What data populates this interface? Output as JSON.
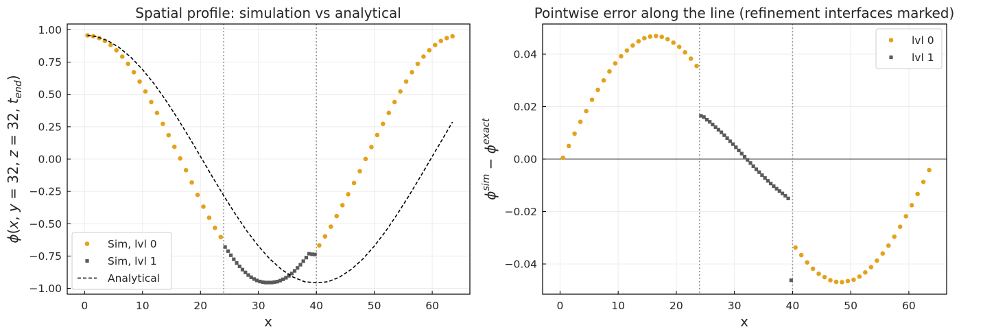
{
  "chart_data": [
    {
      "type": "scatter",
      "title": "Spatial profile: simulation vs analytical",
      "xlabel": "x",
      "ylabel": "φ(x, y = 32, z = 32, t_end)",
      "xlim": [
        -3,
        66.5
      ],
      "ylim": [
        -1.045,
        1.045
      ],
      "xticks": [
        "0",
        "10",
        "20",
        "30",
        "40",
        "50",
        "60"
      ],
      "yticks": [
        "1.00",
        "0.75",
        "0.50",
        "0.25",
        "0.00",
        "−0.25",
        "−0.50",
        "−0.75",
        "−1.00"
      ],
      "interfaces_x": [
        24,
        40
      ],
      "grid": true,
      "legend_position": "lower-left",
      "series": [
        {
          "name": "Sim, lvl 0",
          "marker": "circle",
          "color": "#e3a21b",
          "x": [
            0.5,
            1.5,
            2.5,
            3.5,
            4.5,
            5.5,
            6.5,
            7.5,
            8.5,
            9.5,
            10.5,
            11.5,
            12.5,
            13.5,
            14.5,
            15.5,
            16.5,
            17.5,
            18.5,
            19.5,
            20.5,
            21.5,
            22.5,
            23.5,
            40.5,
            41.5,
            42.5,
            43.5,
            44.5,
            45.5,
            46.5,
            47.5,
            48.5,
            49.5,
            50.5,
            51.5,
            52.5,
            53.5,
            54.5,
            55.5,
            56.5,
            57.5,
            58.5,
            59.5,
            60.5,
            61.5,
            62.5,
            63.5
          ],
          "y": [
            0.957,
            0.95,
            0.936,
            0.914,
            0.882,
            0.842,
            0.793,
            0.737,
            0.672,
            0.6,
            0.523,
            0.441,
            0.357,
            0.272,
            0.185,
            0.095,
            0.005,
            -0.086,
            -0.181,
            -0.277,
            -0.368,
            -0.454,
            -0.532,
            -0.603,
            -0.668,
            -0.598,
            -0.523,
            -0.441,
            -0.357,
            -0.272,
            -0.185,
            -0.094,
            0.001,
            0.093,
            0.186,
            0.272,
            0.357,
            0.441,
            0.523,
            0.6,
            0.672,
            0.737,
            0.793,
            0.842,
            0.882,
            0.914,
            0.936,
            0.95
          ]
        },
        {
          "name": "Sim, lvl 1",
          "marker": "square",
          "color": "#5a5a5a",
          "x": [
            24.25,
            24.75,
            25.25,
            25.75,
            26.25,
            26.75,
            27.25,
            27.75,
            28.25,
            28.75,
            29.25,
            29.75,
            30.25,
            30.75,
            31.25,
            31.75,
            32.25,
            32.75,
            33.25,
            33.75,
            34.25,
            34.75,
            35.25,
            35.75,
            36.25,
            36.75,
            37.25,
            37.75,
            38.25,
            38.75,
            39.25,
            39.75
          ],
          "y": [
            -0.68,
            -0.712,
            -0.744,
            -0.775,
            -0.804,
            -0.83,
            -0.855,
            -0.877,
            -0.897,
            -0.914,
            -0.928,
            -0.939,
            -0.947,
            -0.952,
            -0.955,
            -0.955,
            -0.955,
            -0.952,
            -0.948,
            -0.94,
            -0.93,
            -0.918,
            -0.903,
            -0.885,
            -0.865,
            -0.842,
            -0.817,
            -0.79,
            -0.762,
            -0.732,
            -0.736,
            -0.738
          ]
        },
        {
          "name": "Analytical",
          "style": "dashed",
          "color": "#000000",
          "x": [
            0.5,
            2,
            4,
            6,
            8,
            10,
            12,
            14,
            16,
            18,
            20,
            22,
            24,
            26,
            28,
            30,
            32,
            34,
            36,
            38,
            40,
            42,
            44,
            46,
            48,
            50,
            52,
            54,
            56,
            58,
            60,
            62,
            63.5
          ],
          "y": [
            0.957,
            0.948,
            0.916,
            0.862,
            0.787,
            0.693,
            0.582,
            0.456,
            0.318,
            0.172,
            0.02,
            -0.133,
            -0.282,
            -0.424,
            -0.556,
            -0.673,
            -0.774,
            -0.854,
            -0.913,
            -0.949,
            -0.957,
            -0.949,
            -0.913,
            -0.854,
            -0.774,
            -0.673,
            -0.556,
            -0.424,
            -0.282,
            -0.133,
            0.02,
            0.172,
            0.287
          ]
        }
      ]
    },
    {
      "type": "scatter",
      "title": "Pointwise error along the line (refinement interfaces marked)",
      "xlabel": "x",
      "ylabel": "φ^sim − φ^exact",
      "xlim": [
        -3,
        66.5
      ],
      "ylim": [
        -0.0515,
        0.0515
      ],
      "xticks": [
        "0",
        "10",
        "20",
        "30",
        "40",
        "50",
        "60"
      ],
      "yticks": [
        "0.04",
        "0.02",
        "0.00",
        "−0.02",
        "−0.04"
      ],
      "interfaces_x": [
        24,
        40
      ],
      "zero_line": true,
      "grid": true,
      "legend_position": "upper-right",
      "series": [
        {
          "name": "lvl 0",
          "marker": "circle",
          "color": "#e3a21b",
          "x": [
            0.5,
            1.5,
            2.5,
            3.5,
            4.5,
            5.5,
            6.5,
            7.5,
            8.5,
            9.5,
            10.5,
            11.5,
            12.5,
            13.5,
            14.5,
            15.5,
            16.5,
            17.5,
            18.5,
            19.5,
            20.5,
            21.5,
            22.5,
            23.5,
            40.5,
            41.5,
            42.5,
            43.5,
            44.5,
            45.5,
            46.5,
            47.5,
            48.5,
            49.5,
            50.5,
            51.5,
            52.5,
            53.5,
            54.5,
            55.5,
            56.5,
            57.5,
            58.5,
            59.5,
            60.5,
            61.5,
            62.5,
            63.5
          ],
          "y": [
            0.0005,
            0.005,
            0.0097,
            0.0142,
            0.0183,
            0.0226,
            0.0264,
            0.03,
            0.0334,
            0.0365,
            0.0392,
            0.0414,
            0.0433,
            0.0449,
            0.0461,
            0.0467,
            0.0469,
            0.0466,
            0.0457,
            0.0444,
            0.0428,
            0.0407,
            0.0383,
            0.0355,
            -0.0337,
            -0.0366,
            -0.0394,
            -0.0418,
            -0.0437,
            -0.045,
            -0.0462,
            -0.0468,
            -0.0469,
            -0.0465,
            -0.046,
            -0.0448,
            -0.0432,
            -0.0412,
            -0.0387,
            -0.036,
            -0.033,
            -0.0296,
            -0.0258,
            -0.0218,
            -0.0176,
            -0.0133,
            -0.0087,
            -0.0042
          ]
        },
        {
          "name": "lvl 1",
          "marker": "square",
          "color": "#5a5a5a",
          "x": [
            24.25,
            24.75,
            25.25,
            25.75,
            26.25,
            26.75,
            27.25,
            27.75,
            28.25,
            28.75,
            29.25,
            29.75,
            30.25,
            30.75,
            31.25,
            31.75,
            32.25,
            32.75,
            33.25,
            33.75,
            34.25,
            34.75,
            35.25,
            35.75,
            36.25,
            36.75,
            37.25,
            37.75,
            38.25,
            38.75,
            39.25,
            39.75
          ],
          "y": [
            0.0165,
            0.016,
            0.015,
            0.0142,
            0.0132,
            0.0122,
            0.0112,
            0.0102,
            0.0091,
            0.008,
            0.0068,
            0.0057,
            0.0045,
            0.0033,
            0.0021,
            0.0009,
            -0.0003,
            -0.0015,
            -0.0027,
            -0.0039,
            -0.005,
            -0.0061,
            -0.0072,
            -0.0083,
            -0.0093,
            -0.0103,
            -0.0113,
            -0.0122,
            -0.0131,
            -0.014,
            -0.015,
            -0.0462
          ]
        }
      ]
    }
  ]
}
